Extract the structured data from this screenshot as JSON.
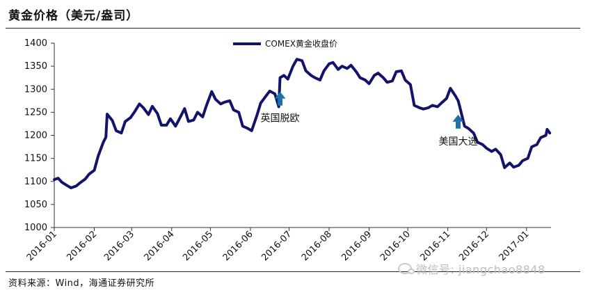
{
  "header": {
    "title": "黄金价格（美元/盎司）"
  },
  "footer": {
    "source": "资料来源：Wind，海通证券研究所"
  },
  "watermark": {
    "text": "微信号: jiangchao8848"
  },
  "chart_data": {
    "type": "line",
    "title": "黄金价格（美元/盎司）",
    "xlabel": "",
    "ylabel": "",
    "ylim": [
      1000,
      1400
    ],
    "yticks": [
      1000,
      1050,
      1100,
      1150,
      1200,
      1250,
      1300,
      1350,
      1400
    ],
    "xlim": [
      "2016-01-01",
      "2017-01-20"
    ],
    "xticks": [
      "2016-01",
      "2016-02",
      "2016-03",
      "2016-04",
      "2016-05",
      "2016-06",
      "2016-07",
      "2016-08",
      "2016-09",
      "2016-10",
      "2016-11",
      "2016-12",
      "2017-01"
    ],
    "grid": false,
    "legend": "top-center",
    "colors": {
      "line": "#13136b",
      "arrow": "#1f6fa8"
    },
    "series": [
      {
        "name": "COMEX黄金收盘价",
        "points": [
          [
            "2016-01-01",
            1104
          ],
          [
            "2016-01-04",
            1107
          ],
          [
            "2016-01-07",
            1098
          ],
          [
            "2016-01-11",
            1091
          ],
          [
            "2016-01-14",
            1086
          ],
          [
            "2016-01-18",
            1090
          ],
          [
            "2016-01-21",
            1097
          ],
          [
            "2016-01-25",
            1105
          ],
          [
            "2016-01-28",
            1116
          ],
          [
            "2016-02-01",
            1124
          ],
          [
            "2016-02-04",
            1155
          ],
          [
            "2016-02-08",
            1185
          ],
          [
            "2016-02-10",
            1196
          ],
          [
            "2016-02-11",
            1246
          ],
          [
            "2016-02-15",
            1232
          ],
          [
            "2016-02-18",
            1210
          ],
          [
            "2016-02-22",
            1205
          ],
          [
            "2016-02-25",
            1230
          ],
          [
            "2016-02-29",
            1238
          ],
          [
            "2016-03-03",
            1250
          ],
          [
            "2016-03-07",
            1268
          ],
          [
            "2016-03-10",
            1260
          ],
          [
            "2016-03-14",
            1245
          ],
          [
            "2016-03-17",
            1263
          ],
          [
            "2016-03-21",
            1247
          ],
          [
            "2016-03-24",
            1222
          ],
          [
            "2016-03-28",
            1222
          ],
          [
            "2016-03-31",
            1236
          ],
          [
            "2016-04-04",
            1220
          ],
          [
            "2016-04-07",
            1236
          ],
          [
            "2016-04-11",
            1258
          ],
          [
            "2016-04-14",
            1230
          ],
          [
            "2016-04-18",
            1233
          ],
          [
            "2016-04-21",
            1250
          ],
          [
            "2016-04-25",
            1240
          ],
          [
            "2016-04-28",
            1265
          ],
          [
            "2016-05-02",
            1295
          ],
          [
            "2016-05-05",
            1278
          ],
          [
            "2016-05-09",
            1268
          ],
          [
            "2016-05-12",
            1272
          ],
          [
            "2016-05-16",
            1275
          ],
          [
            "2016-05-19",
            1255
          ],
          [
            "2016-05-23",
            1250
          ],
          [
            "2016-05-26",
            1220
          ],
          [
            "2016-05-30",
            1215
          ],
          [
            "2016-06-02",
            1210
          ],
          [
            "2016-06-06",
            1243
          ],
          [
            "2016-06-09",
            1270
          ],
          [
            "2016-06-13",
            1285
          ],
          [
            "2016-06-16",
            1296
          ],
          [
            "2016-06-20",
            1290
          ],
          [
            "2016-06-23",
            1262
          ],
          [
            "2016-06-24",
            1325
          ],
          [
            "2016-06-27",
            1330
          ],
          [
            "2016-06-30",
            1322
          ],
          [
            "2016-07-04",
            1350
          ],
          [
            "2016-07-07",
            1365
          ],
          [
            "2016-07-11",
            1362
          ],
          [
            "2016-07-14",
            1340
          ],
          [
            "2016-07-18",
            1330
          ],
          [
            "2016-07-21",
            1325
          ],
          [
            "2016-07-25",
            1320
          ],
          [
            "2016-07-28",
            1340
          ],
          [
            "2016-08-01",
            1355
          ],
          [
            "2016-08-04",
            1358
          ],
          [
            "2016-08-08",
            1343
          ],
          [
            "2016-08-11",
            1350
          ],
          [
            "2016-08-15",
            1345
          ],
          [
            "2016-08-18",
            1352
          ],
          [
            "2016-08-22",
            1338
          ],
          [
            "2016-08-25",
            1325
          ],
          [
            "2016-08-29",
            1320
          ],
          [
            "2016-09-01",
            1312
          ],
          [
            "2016-09-05",
            1330
          ],
          [
            "2016-09-08",
            1335
          ],
          [
            "2016-09-12",
            1325
          ],
          [
            "2016-09-15",
            1315
          ],
          [
            "2016-09-19",
            1318
          ],
          [
            "2016-09-22",
            1338
          ],
          [
            "2016-09-26",
            1340
          ],
          [
            "2016-09-29",
            1320
          ],
          [
            "2016-10-03",
            1310
          ],
          [
            "2016-10-06",
            1265
          ],
          [
            "2016-10-10",
            1260
          ],
          [
            "2016-10-13",
            1257
          ],
          [
            "2016-10-17",
            1260
          ],
          [
            "2016-10-20",
            1265
          ],
          [
            "2016-10-24",
            1262
          ],
          [
            "2016-10-27",
            1270
          ],
          [
            "2016-10-31",
            1280
          ],
          [
            "2016-11-03",
            1302
          ],
          [
            "2016-11-07",
            1285
          ],
          [
            "2016-11-09",
            1275
          ],
          [
            "2016-11-10",
            1265
          ],
          [
            "2016-11-14",
            1220
          ],
          [
            "2016-11-17",
            1215
          ],
          [
            "2016-11-21",
            1205
          ],
          [
            "2016-11-24",
            1185
          ],
          [
            "2016-11-28",
            1180
          ],
          [
            "2016-12-01",
            1172
          ],
          [
            "2016-12-05",
            1165
          ],
          [
            "2016-12-08",
            1170
          ],
          [
            "2016-12-12",
            1158
          ],
          [
            "2016-12-15",
            1130
          ],
          [
            "2016-12-19",
            1140
          ],
          [
            "2016-12-22",
            1131
          ],
          [
            "2016-12-26",
            1135
          ],
          [
            "2016-12-29",
            1145
          ],
          [
            "2017-01-02",
            1150
          ],
          [
            "2017-01-05",
            1175
          ],
          [
            "2017-01-09",
            1180
          ],
          [
            "2017-01-12",
            1195
          ],
          [
            "2017-01-16",
            1200
          ],
          [
            "2017-01-17",
            1213
          ],
          [
            "2017-01-19",
            1205
          ]
        ]
      }
    ],
    "annotations": [
      {
        "text": "英国脱欧",
        "date": "2016-06-24",
        "type": "arrow"
      },
      {
        "text": "美国大选",
        "date": "2016-11-09",
        "type": "arrow"
      }
    ]
  }
}
